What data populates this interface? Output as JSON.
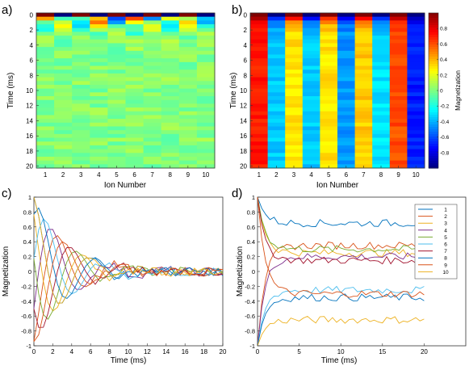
{
  "panels": [
    {
      "id": "a",
      "label": "a)"
    },
    {
      "id": "b",
      "label": "b)"
    },
    {
      "id": "c",
      "label": "c)"
    },
    {
      "id": "d",
      "label": "d)"
    }
  ],
  "chart_data": [
    {
      "panel": "a)",
      "type": "heatmap",
      "xlabel": "Ion Number",
      "ylabel": "Time (ms)",
      "x_ticks": [
        1,
        2,
        3,
        4,
        5,
        6,
        7,
        8,
        9,
        10
      ],
      "y_ticks": [
        0,
        2,
        4,
        6,
        8,
        10,
        12,
        14,
        16,
        18,
        20
      ],
      "y_reversed": true,
      "time_steps": 41,
      "ions": 10,
      "colormap": "jet",
      "clim": [
        -1,
        1
      ],
      "description_values": "row 0: [1,-1,1,-1,1,-1,1,-1,1,-1]; rows 1-6 (t<3ms) strongly oscillating; t>4ms values near 0 (mostly -0.2 to 0.3)"
    },
    {
      "panel": "b)",
      "type": "heatmap",
      "xlabel": "Ion Number",
      "ylabel": "Time (ms)",
      "x_ticks": [
        1,
        2,
        3,
        4,
        5,
        6,
        7,
        8,
        9,
        10
      ],
      "y_ticks": [
        0,
        2,
        4,
        6,
        8,
        10,
        12,
        14,
        16,
        18,
        20
      ],
      "y_reversed": true,
      "colormap": "jet",
      "clim": [
        -1,
        1
      ],
      "colorbar_label": "Magnetization",
      "colorbar_ticks": [
        0.8,
        0.6,
        0.4,
        0.2,
        0,
        -0.2,
        -0.4,
        -0.6,
        -0.8
      ],
      "ion_steady_values": [
        0.7,
        -0.35,
        0.3,
        -0.35,
        0.3,
        -0.45,
        0.35,
        -0.3,
        0.6,
        -0.7
      ]
    },
    {
      "panel": "c)",
      "type": "line",
      "xlabel": "Time (ms)",
      "ylabel": "Magnetization",
      "xlim": [
        0,
        20
      ],
      "ylim": [
        -1,
        1
      ],
      "x_ticks": [
        0,
        2,
        4,
        6,
        8,
        10,
        12,
        14,
        16,
        18,
        20
      ],
      "y_ticks": [
        1,
        0.8,
        0.6,
        0.4,
        0.2,
        0,
        -0.2,
        -0.4,
        -0.6,
        -0.8,
        -1
      ],
      "series_count": 10,
      "initial_values": [
        1,
        -1,
        1,
        -1,
        1,
        -1,
        1,
        -1,
        1,
        -1
      ]
    },
    {
      "panel": "d)",
      "type": "line",
      "xlabel": "Time (ms)",
      "ylabel": "Magnetization",
      "xlim": [
        0,
        25
      ],
      "ylim": [
        -1,
        1
      ],
      "x_ticks": [
        0,
        5,
        10,
        15,
        20
      ],
      "y_ticks": [
        1,
        0.8,
        0.6,
        0.4,
        0.2,
        0,
        -0.2,
        -0.4,
        -0.6,
        -0.8,
        -1
      ],
      "legend": [
        "1",
        "2",
        "3",
        "4",
        "5",
        "6",
        "7",
        "8",
        "9",
        "10"
      ],
      "legend_position": "top-right",
      "series_colors": [
        "#0072BD",
        "#D95319",
        "#EDB120",
        "#7E2F8E",
        "#77AC30",
        "#4DBEEE",
        "#A2142F",
        "#0072BD",
        "#D95319",
        "#EDB120"
      ],
      "series_final": [
        0.65,
        0.35,
        0.25,
        0.2,
        0.3,
        -0.25,
        0.15,
        -0.35,
        -0.3,
        -0.65
      ]
    }
  ]
}
